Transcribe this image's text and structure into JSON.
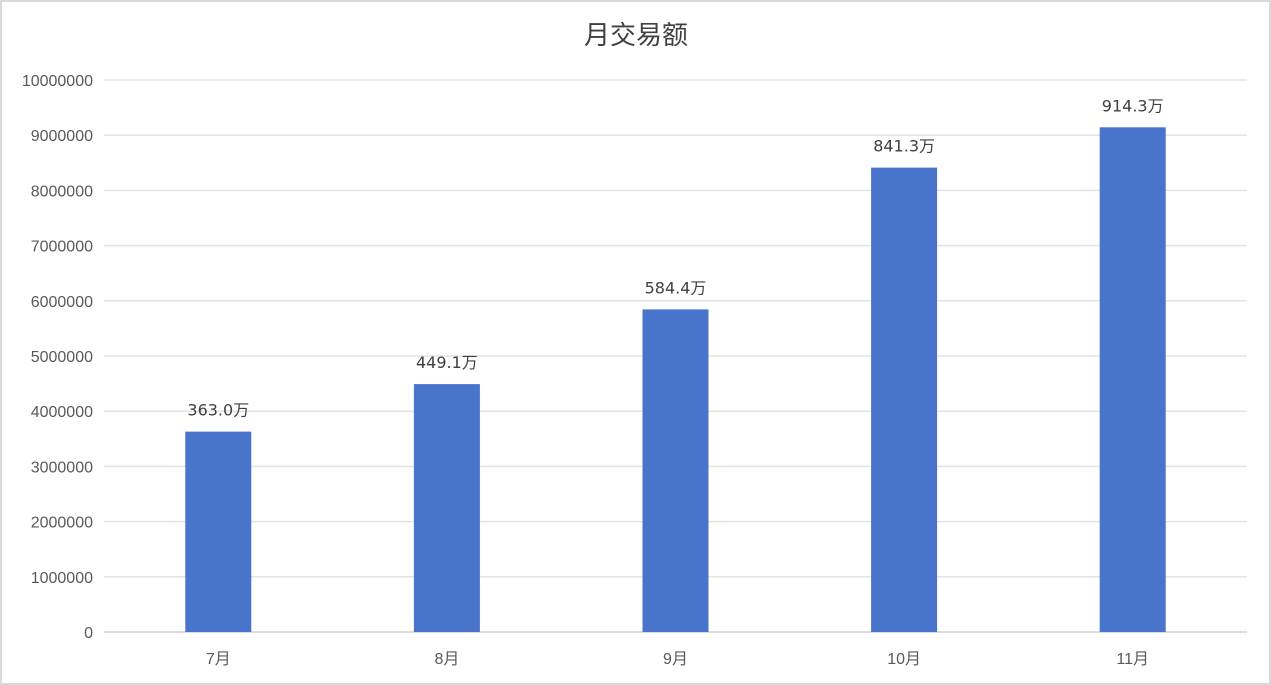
{
  "chart_data": {
    "type": "bar",
    "title": "月交易额",
    "categories": [
      "7月",
      "8月",
      "9月",
      "10月",
      "11月"
    ],
    "values": [
      3630000,
      4491000,
      5844000,
      8413000,
      9143000
    ],
    "data_labels": [
      "363.0万",
      "449.1万",
      "584.4万",
      "841.3万",
      "914.3万"
    ],
    "ylim": [
      0,
      10000000
    ],
    "yticks": [
      "0",
      "1000000",
      "2000000",
      "3000000",
      "4000000",
      "5000000",
      "6000000",
      "7000000",
      "8000000",
      "9000000",
      "10000000"
    ],
    "grid": true,
    "bar_color": "#4874cb",
    "legend": "none"
  }
}
